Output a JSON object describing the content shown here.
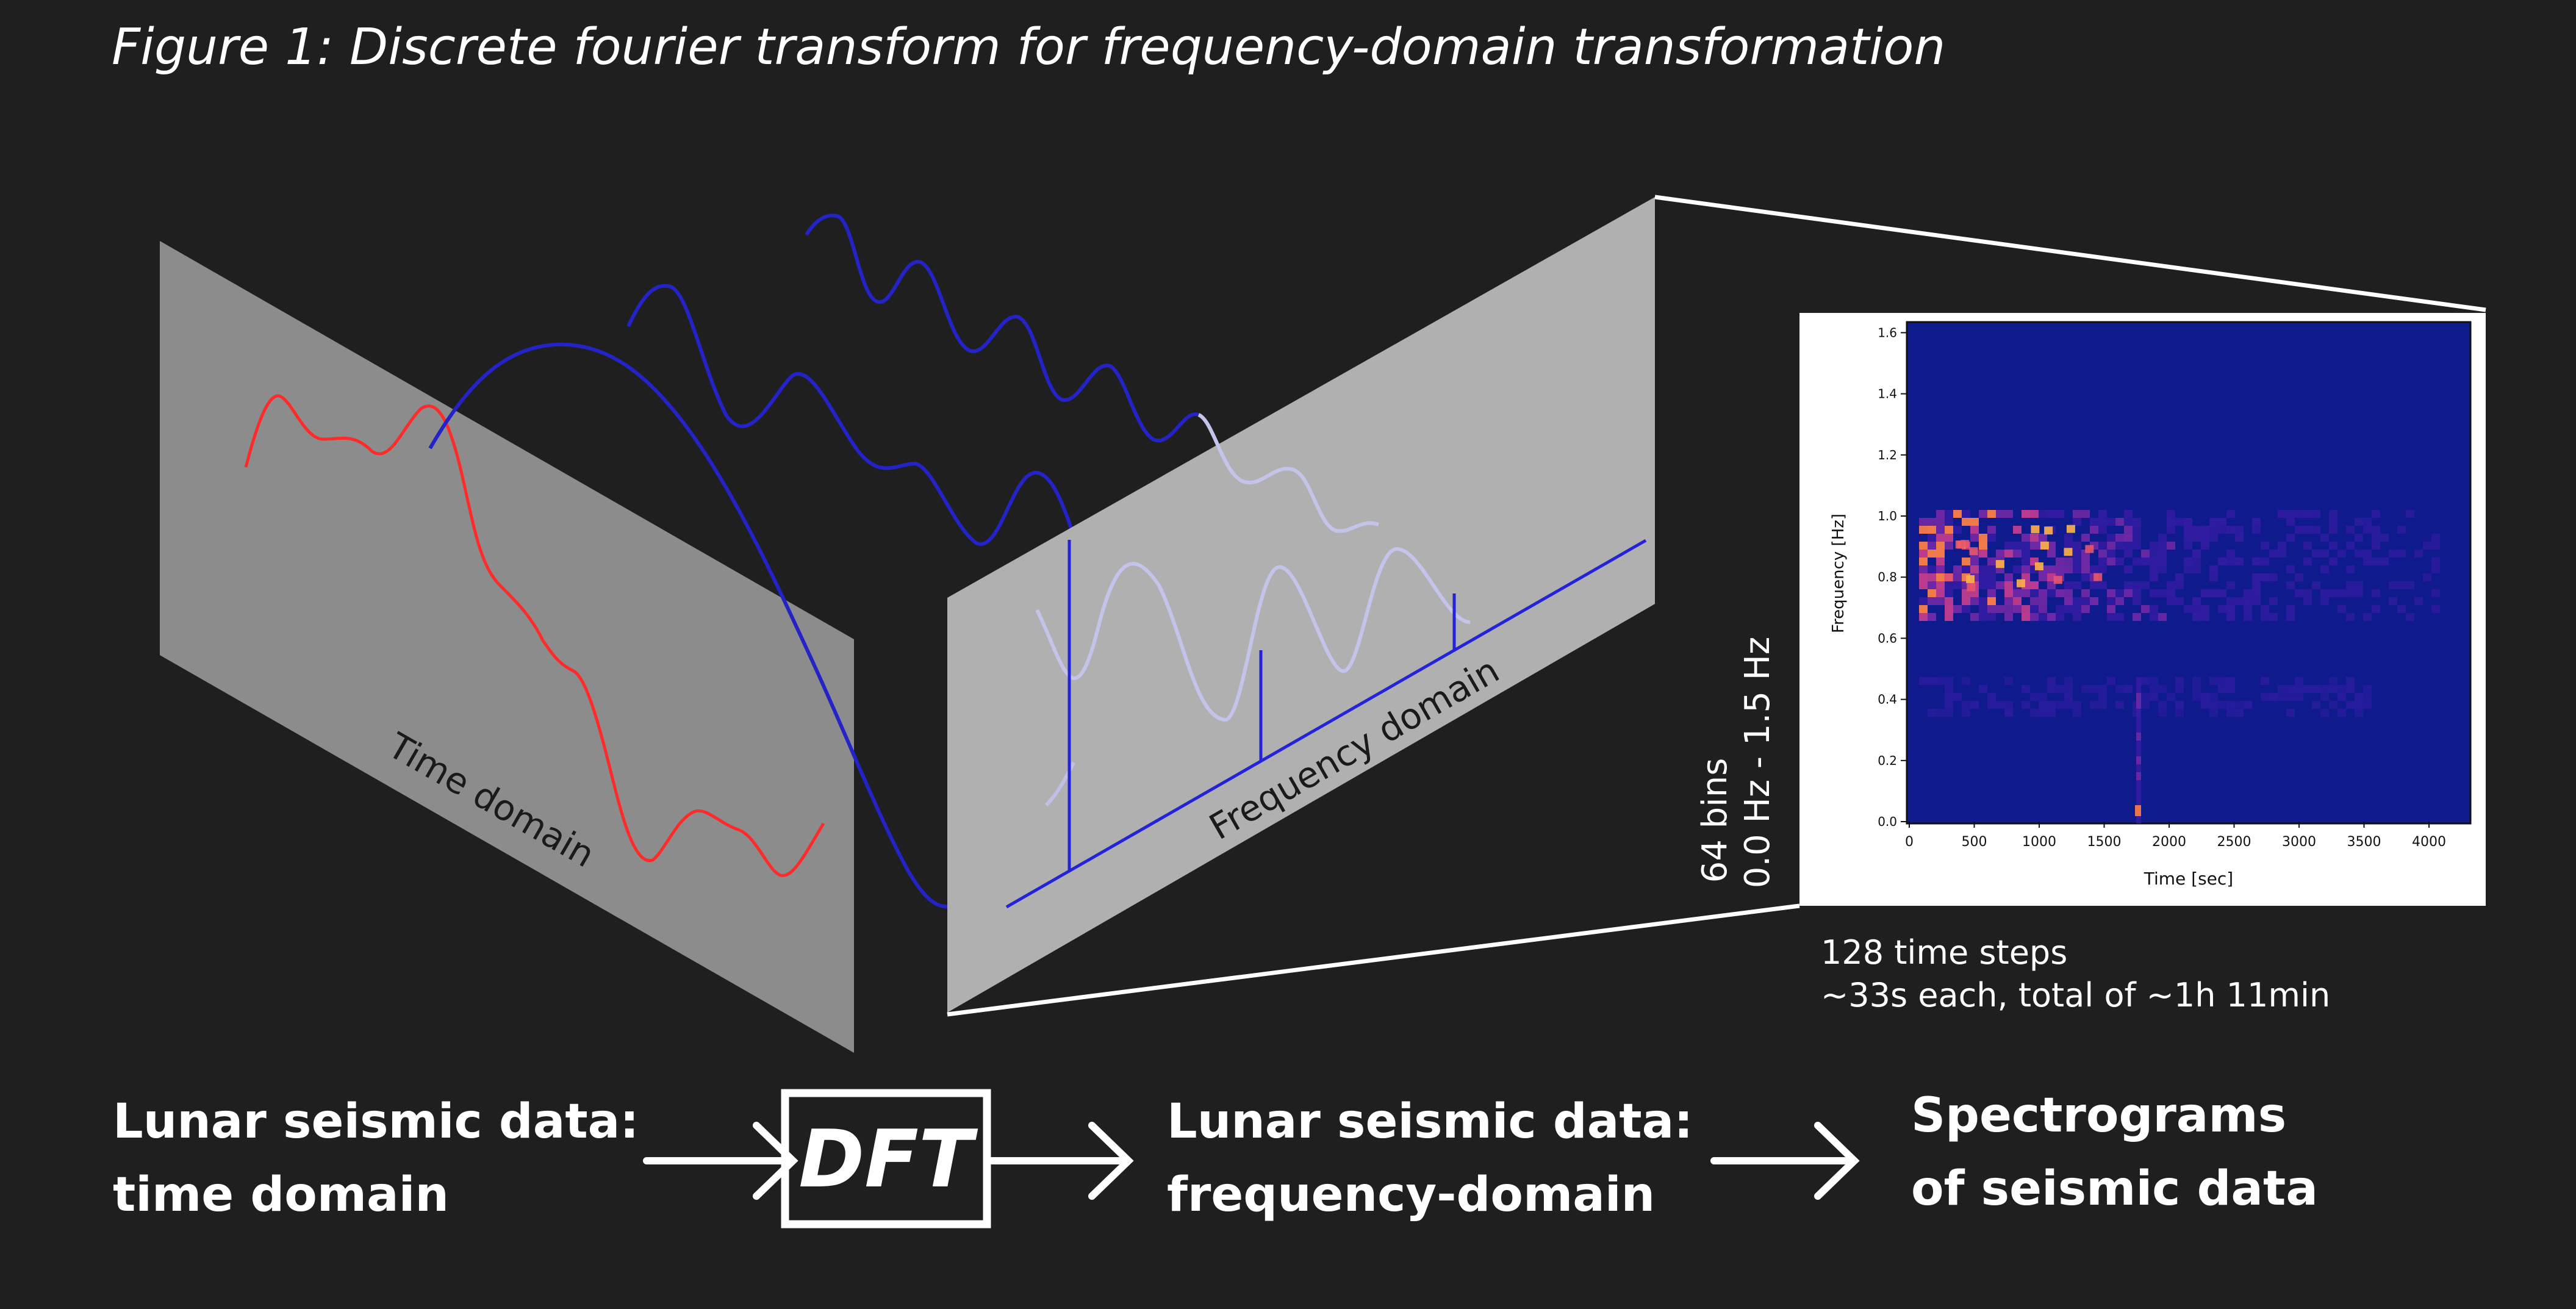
{
  "figure": {
    "title": "Figure 1: Discrete fourier transform for  frequency-domain transformation"
  },
  "diagram": {
    "time_domain_label": "Time domain",
    "frequency_domain_label": "Frequency domain",
    "bins_label_line1": "64 bins",
    "bins_label_line2": "0.0 Hz - 1.5 Hz",
    "time_steps_line1": "128 time steps",
    "time_steps_line2": "~33s each, total of ~1h 11min"
  },
  "spectrogram": {
    "ylabel": "Frequency [Hz]",
    "xlabel": "Time [sec]",
    "x_ticks": [
      "0",
      "500",
      "1000",
      "1500",
      "2000",
      "2500",
      "3000",
      "3500",
      "4000"
    ],
    "y_ticks": [
      "0.0",
      "0.2",
      "0.4",
      "0.6",
      "0.8",
      "1.0",
      "1.2",
      "1.4",
      "1.6"
    ]
  },
  "flow": {
    "step1_line1": "Lunar seismic data:",
    "step1_line2": "time domain",
    "dft_label": "DFT",
    "step2_line1": "Lunar seismic data:",
    "step2_line2": "frequency-domain",
    "step3_line1": "Spectrograms",
    "step3_line2": "of seismic data"
  },
  "colors": {
    "background": "#1f1f1f",
    "time_signal": "#ff2a2a",
    "component_waves": "#2323c8",
    "panel_time": "#8c8c8c",
    "panel_frequency": "#b0b0b0",
    "spectrogram_bg": "#0f1a8c",
    "text": "#ffffff"
  }
}
